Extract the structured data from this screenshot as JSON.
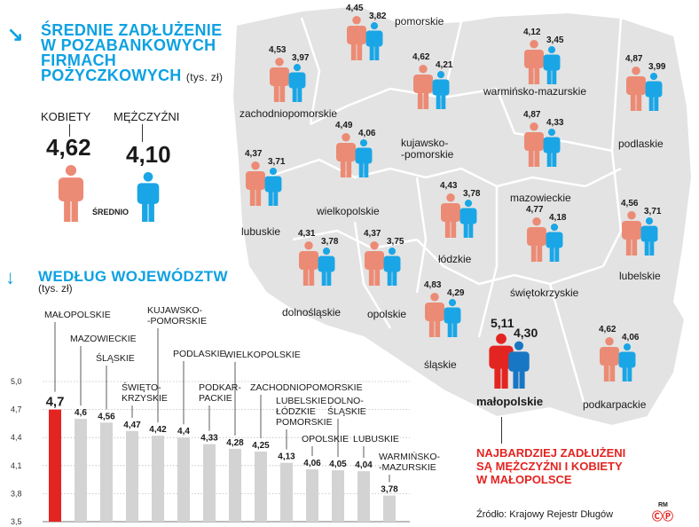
{
  "header": {
    "title_lines": [
      "ŚREDNIE ZADŁUŻENIE",
      "W POZABANKOWYCH",
      "FIRMACH",
      "POŻYCZKOWYCH"
    ],
    "unit": "(tys. zł)"
  },
  "average": {
    "women_label": "KOBIETY",
    "men_label": "MĘŻCZYŹNI",
    "women_value": "4,62",
    "men_value": "4,10",
    "average_label": "ŚREDNIO"
  },
  "section2": {
    "title": "WEDŁUG WOJEWÓDZTW",
    "unit": "(tys. zł)"
  },
  "colors": {
    "accent": "#0ea1e2",
    "women": "#ec8b75",
    "men": "#1aa6e6",
    "highlight_women": "#e32421",
    "highlight_men": "#1877c4",
    "bar": "#d3d3d3",
    "bar_highlight": "#e32421",
    "map_fill": "#e3e3e3"
  },
  "regions": [
    {
      "name": "pomorskie",
      "women": "4,45",
      "men": "3,82"
    },
    {
      "name": "zachodniopomorskie",
      "women": "4,53",
      "men": "3,97"
    },
    {
      "name": "warmińsko-mazurskie",
      "women": "4,12",
      "men": "3,45"
    },
    {
      "name": "kujawsko-\n-pomorskie",
      "women": "4,62",
      "men": "4,21"
    },
    {
      "name": "podlaskie",
      "women": "4,87",
      "men": "3,99"
    },
    {
      "name": "wielkopolskie",
      "women": "4,49",
      "men": "4,06"
    },
    {
      "name": "mazowieckie",
      "women": "4,87",
      "men": "4,33"
    },
    {
      "name": "lubuskie",
      "women": "4,37",
      "men": "3,71"
    },
    {
      "name": "łódzkie",
      "women": "4,43",
      "men": "3,78"
    },
    {
      "name": "lubelskie",
      "women": "4,56",
      "men": "3,71"
    },
    {
      "name": "dolnośląskie",
      "women": "4,31",
      "men": "3,78"
    },
    {
      "name": "opolskie",
      "women": "4,37",
      "men": "3,75"
    },
    {
      "name": "świętokrzyskie",
      "women": "4,77",
      "men": "4,18"
    },
    {
      "name": "śląskie",
      "women": "4,83",
      "men": "4,29"
    },
    {
      "name": "małopolskie",
      "women": "5,11",
      "men": "4,30"
    },
    {
      "name": "podkarpackie",
      "women": "4,62",
      "men": "4,06"
    }
  ],
  "note": {
    "lines": [
      "NAJBARDZIEJ ZADŁUŻENI",
      "SĄ MĘŻCZYŹNI I KOBIETY",
      "W MAŁOPOLSCE"
    ]
  },
  "source": "Źródło: Krajowy Rejestr Długów",
  "logo_text": "RM",
  "chart_data": {
    "type": "bar",
    "categories": [
      [
        "MAŁOPOLSKIE"
      ],
      [
        "MAZOWIECKIE"
      ],
      [
        "ŚLĄSKIE"
      ],
      [
        "ŚWIĘTO-",
        "KRZYSKIE"
      ],
      [
        "KUJAWSKO-",
        "-POMORSKIE"
      ],
      [
        "PODLASKIE"
      ],
      [
        "PODKAR-",
        "PACKIE"
      ],
      [
        "WIELKOPOLSKIE"
      ],
      [
        "ZACHODNIOPOMORSKIE"
      ],
      [
        "LUBELSKIE",
        "ŁÓDZKIE",
        "POMORSKIE"
      ],
      [
        "OPOLSKIE"
      ],
      [
        "DOLNO-",
        "ŚLĄSKIE"
      ],
      [
        "LUBUSKIE"
      ],
      [
        "WARMIŃSKO-",
        "-MAZURSKIE"
      ]
    ],
    "values": [
      4.7,
      4.6,
      4.56,
      4.47,
      4.42,
      4.4,
      4.33,
      4.28,
      4.25,
      4.13,
      4.06,
      4.05,
      4.04,
      3.78
    ],
    "value_labels": [
      "4,7",
      "4,6",
      "4,56",
      "4,47",
      "4,42",
      "4,4",
      "4,33",
      "4,28",
      "4,25",
      "4,13",
      "4,06",
      "4,05",
      "4,04",
      "3,78"
    ],
    "highlight_index": 0,
    "ylim": [
      3.5,
      5.0
    ],
    "yticks": [
      3.5,
      3.8,
      4.1,
      4.4,
      4.7,
      5.0
    ],
    "ytick_labels": [
      "3,5",
      "3,8",
      "4,1",
      "4,4",
      "4,7",
      "5,0"
    ],
    "grid": true
  }
}
